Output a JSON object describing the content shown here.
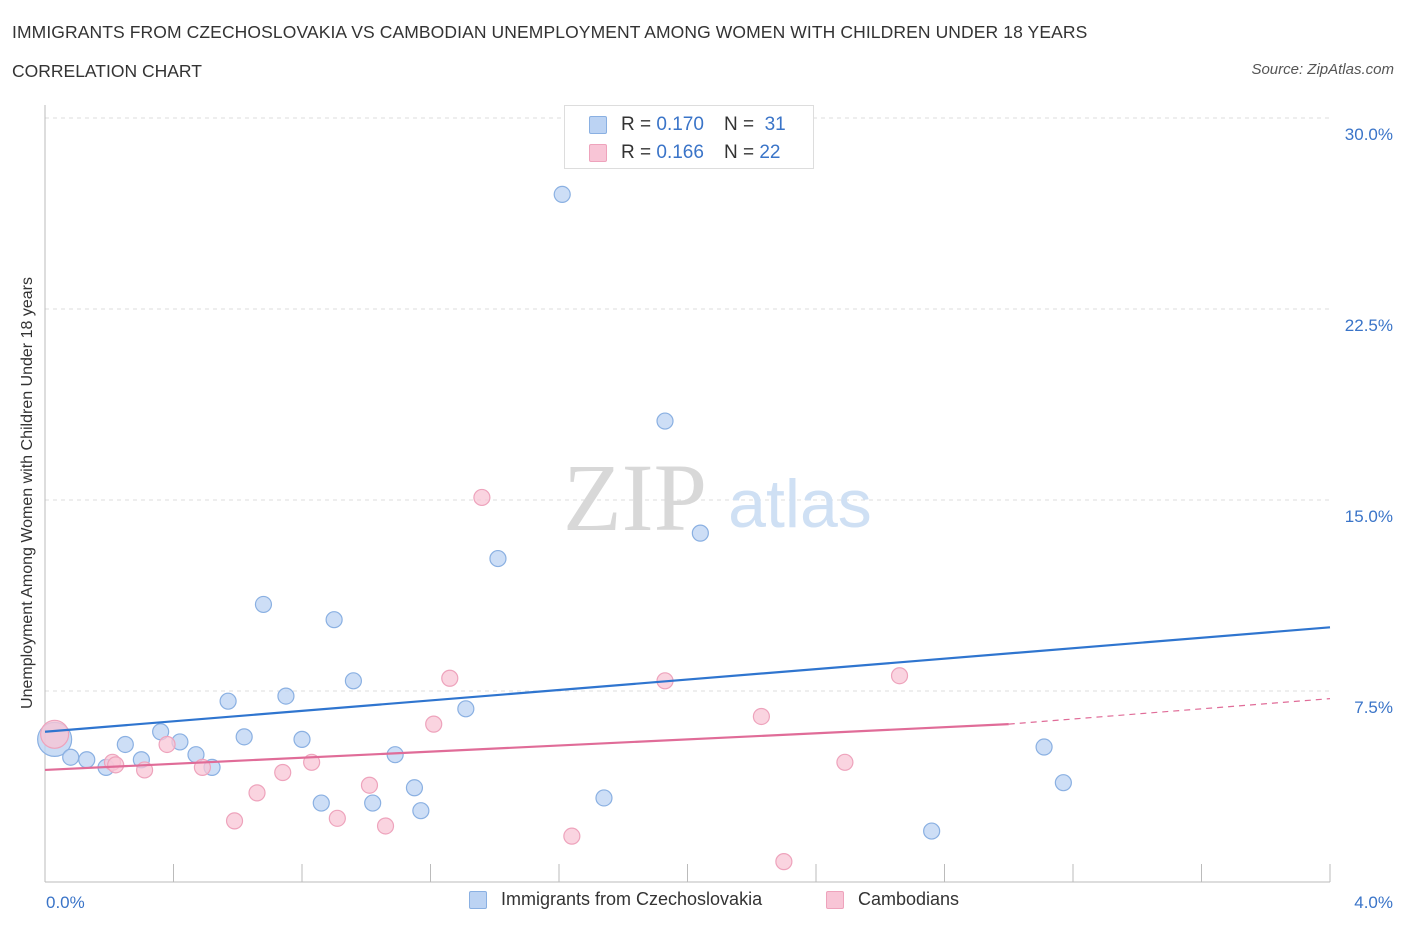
{
  "header": {
    "title": "IMMIGRANTS FROM CZECHOSLOVAKIA VS CAMBODIAN UNEMPLOYMENT AMONG WOMEN WITH CHILDREN UNDER 18 YEARS",
    "subtitle": "CORRELATION CHART",
    "source": "Source: ZipAtlas.com"
  },
  "watermark": {
    "zip": "ZIP",
    "atlas": "atlas"
  },
  "colors": {
    "blue_fill": "#bcd3f3",
    "blue_stroke": "#8ab0e2",
    "blue_line": "#2f75cf",
    "pink_fill": "#f8c5d6",
    "pink_stroke": "#eea3bc",
    "pink_line": "#e06c98",
    "tick_text": "#3a74c8",
    "grid": "#dddddd"
  },
  "legend": {
    "r_label": "R =",
    "n_label": "N =",
    "entries": [
      {
        "name": "Immigrants from Czechoslovakia",
        "r": "0.170",
        "n": "31",
        "color": "#bcd3f3"
      },
      {
        "name": "Cambodians",
        "r": "0.166",
        "n": "22",
        "color": "#f8c5d6"
      }
    ]
  },
  "chart_data": {
    "type": "scatter",
    "title": "IMMIGRANTS FROM CZECHOSLOVAKIA VS CAMBODIAN UNEMPLOYMENT AMONG WOMEN WITH CHILDREN UNDER 18 YEARS",
    "xlabel": "",
    "ylabel": "Unemployment Among Women with Children Under 18 years",
    "xlim": [
      0,
      4.0
    ],
    "ylim": [
      0,
      30.0
    ],
    "x_tick_labels": [
      "0.0%",
      "4.0%"
    ],
    "y_ticks": [
      7.5,
      15.0,
      22.5,
      30.0
    ],
    "y_tick_labels": [
      "7.5%",
      "15.0%",
      "22.5%",
      "30.0%"
    ],
    "grid": true,
    "legend_position": "top-center",
    "series": [
      {
        "name": "Immigrants from Czechoslovakia",
        "color": "#bcd3f3",
        "points": [
          [
            0.03,
            5.6
          ],
          [
            0.08,
            4.9
          ],
          [
            0.13,
            4.8
          ],
          [
            0.19,
            4.5
          ],
          [
            0.25,
            5.4
          ],
          [
            0.3,
            4.8
          ],
          [
            0.36,
            5.9
          ],
          [
            0.42,
            5.5
          ],
          [
            0.47,
            5.0
          ],
          [
            0.52,
            4.5
          ],
          [
            0.57,
            7.1
          ],
          [
            0.62,
            5.7
          ],
          [
            0.68,
            10.9
          ],
          [
            0.75,
            7.3
          ],
          [
            0.8,
            5.6
          ],
          [
            0.86,
            3.1
          ],
          [
            0.9,
            10.3
          ],
          [
            0.96,
            7.9
          ],
          [
            1.02,
            3.1
          ],
          [
            1.09,
            5.0
          ],
          [
            1.15,
            3.7
          ],
          [
            1.17,
            2.8
          ],
          [
            1.31,
            6.8
          ],
          [
            1.41,
            12.7
          ],
          [
            1.61,
            27.0
          ],
          [
            1.74,
            3.3
          ],
          [
            1.93,
            18.1
          ],
          [
            2.04,
            13.7
          ],
          [
            2.76,
            2.0
          ],
          [
            3.11,
            5.3
          ],
          [
            3.17,
            3.9
          ]
        ],
        "trend": [
          [
            0.0,
            5.9
          ],
          [
            4.0,
            10.0
          ]
        ]
      },
      {
        "name": "Cambodians",
        "color": "#f8c5d6",
        "points": [
          [
            0.03,
            5.8
          ],
          [
            0.21,
            4.7
          ],
          [
            0.22,
            4.6
          ],
          [
            0.31,
            4.4
          ],
          [
            0.38,
            5.4
          ],
          [
            0.49,
            4.5
          ],
          [
            0.59,
            2.4
          ],
          [
            0.66,
            3.5
          ],
          [
            0.74,
            4.3
          ],
          [
            0.83,
            4.7
          ],
          [
            0.91,
            2.5
          ],
          [
            1.01,
            3.8
          ],
          [
            1.06,
            2.2
          ],
          [
            1.21,
            6.2
          ],
          [
            1.26,
            8.0
          ],
          [
            1.36,
            15.1
          ],
          [
            1.64,
            1.8
          ],
          [
            1.93,
            7.9
          ],
          [
            2.23,
            6.5
          ],
          [
            2.3,
            0.8
          ],
          [
            2.49,
            4.7
          ],
          [
            2.66,
            8.1
          ]
        ],
        "trend": [
          [
            0.0,
            4.4
          ],
          [
            3.0,
            6.2
          ]
        ],
        "trend_dashed": [
          [
            3.0,
            6.2
          ],
          [
            4.0,
            7.2
          ]
        ]
      }
    ]
  }
}
